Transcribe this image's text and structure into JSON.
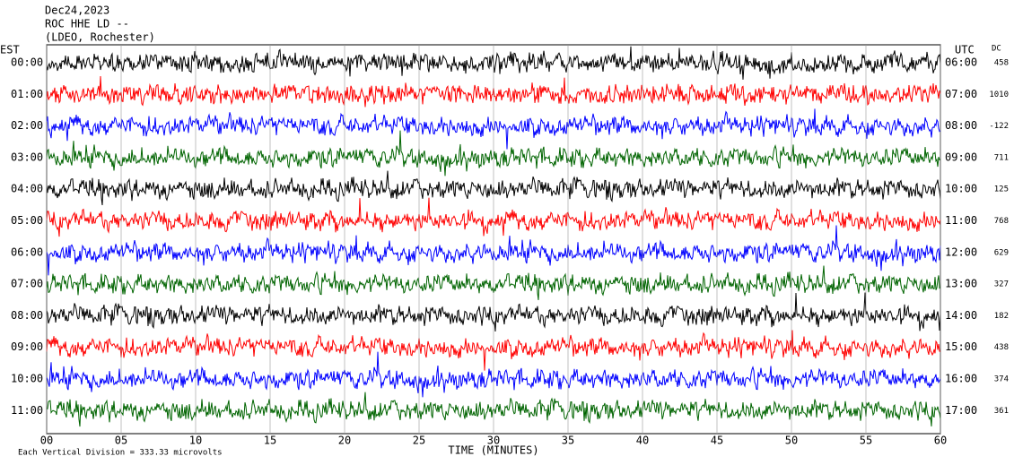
{
  "chart_data": {
    "type": "helicorder",
    "title": [
      "Dec24,2023",
      "ROC HHE LD --",
      "(LDEO, Rochester)"
    ],
    "left_axis_label": "EST",
    "right_axis_label": "UTC",
    "dc_label": "DC",
    "left_labels": [
      "00:00",
      "01:00",
      "02:00",
      "03:00",
      "04:00",
      "05:00",
      "06:00",
      "07:00",
      "08:00",
      "09:00",
      "10:00",
      "11:00"
    ],
    "right_labels": [
      "06:00",
      "07:00",
      "08:00",
      "09:00",
      "10:00",
      "11:00",
      "12:00",
      "13:00",
      "14:00",
      "15:00",
      "16:00",
      "17:00"
    ],
    "dc_values": [
      458,
      1010,
      -122,
      711,
      125,
      768,
      629,
      327,
      182,
      438,
      374,
      361
    ],
    "trace_colors": [
      "#000000",
      "#ff0000",
      "#0000ff",
      "#006400"
    ],
    "xlabel": "TIME (MINUTES)",
    "xlim": [
      0,
      60
    ],
    "xticks": [
      {
        "value": 0,
        "label": "00"
      },
      {
        "value": 5,
        "label": "05"
      },
      10,
      15,
      20,
      25,
      30,
      35,
      40,
      45,
      50,
      55,
      60
    ],
    "note": "Each Vertical Division =  333.33 microvolts"
  }
}
